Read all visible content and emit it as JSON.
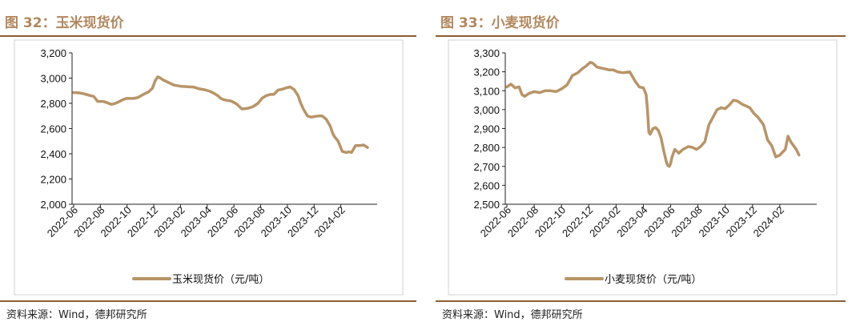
{
  "source": "资料来源：Wind，德邦研究所",
  "colors": {
    "line": "#b89468",
    "title": "#b2875e",
    "rule": "#8b5f33"
  },
  "chart_data": [
    {
      "type": "line",
      "figure_title": "图 32：玉米现货价",
      "xlabel": "",
      "ylabel": "",
      "xticks": [
        "2022-06",
        "2022-08",
        "2022-10",
        "2022-12",
        "2023-02",
        "2023-04",
        "2023-06",
        "2023-08",
        "2023-10",
        "2023-12",
        "2024-02"
      ],
      "yticks": [
        "2,000",
        "2,200",
        "2,400",
        "2,600",
        "2,800",
        "3,000",
        "3,200"
      ],
      "ylim": [
        2000,
        3200
      ],
      "x_range": [
        0,
        22
      ],
      "grid": false,
      "legend": "bottom-center",
      "series": [
        {
          "name": "玉米现货价（元/吨）",
          "x": [
            0,
            0.4,
            0.8,
            1.2,
            1.5,
            1.8,
            2.2,
            2.5,
            2.8,
            3.0,
            3.3,
            3.7,
            4.0,
            4.4,
            4.8,
            5.2,
            5.6,
            5.9,
            6.1,
            6.3,
            6.5,
            6.7,
            6.9,
            7.1,
            7.5,
            8.0,
            8.5,
            9.0,
            9.4,
            9.8,
            10.2,
            10.5,
            10.8,
            11.0,
            11.2,
            11.4,
            11.8,
            12.2,
            12.6,
            13.0,
            13.4,
            13.8,
            14.1,
            14.4,
            14.7,
            15.0,
            15.3,
            15.6,
            15.9,
            16.2,
            16.5,
            16.8,
            17.0,
            17.2,
            17.5,
            17.8,
            18.0,
            18.3,
            18.6,
            18.9,
            19.2,
            19.4,
            19.5,
            19.8,
            20.1,
            20.4,
            20.6,
            20.8,
            21.1,
            21.4,
            21.7,
            22.0
          ],
          "values": [
            2885,
            2883,
            2875,
            2862,
            2855,
            2815,
            2815,
            2805,
            2793,
            2795,
            2808,
            2830,
            2840,
            2838,
            2845,
            2870,
            2890,
            2920,
            2980,
            3010,
            3000,
            2985,
            2975,
            2965,
            2945,
            2935,
            2932,
            2928,
            2915,
            2908,
            2895,
            2880,
            2860,
            2840,
            2830,
            2825,
            2818,
            2795,
            2755,
            2760,
            2772,
            2800,
            2840,
            2860,
            2870,
            2872,
            2905,
            2912,
            2922,
            2930,
            2910,
            2860,
            2800,
            2755,
            2700,
            2690,
            2695,
            2700,
            2700,
            2675,
            2620,
            2560,
            2540,
            2500,
            2420,
            2410,
            2415,
            2410,
            2465,
            2465,
            2470,
            2450
          ]
        }
      ]
    },
    {
      "type": "line",
      "figure_title": "图 33：小麦现货价",
      "xlabel": "",
      "ylabel": "",
      "xticks": [
        "2022-06",
        "2022-08",
        "2022-10",
        "2022-12",
        "2023-02",
        "2023-04",
        "2023-06",
        "2023-08",
        "2023-10",
        "2023-12",
        "2024-02"
      ],
      "yticks": [
        "2,500",
        "2,600",
        "2,700",
        "2,800",
        "2,900",
        "3,000",
        "3,100",
        "3,200",
        "3,300"
      ],
      "ylim": [
        2500,
        3300
      ],
      "x_range": [
        0,
        22
      ],
      "grid": false,
      "legend": "bottom-center",
      "series": [
        {
          "name": "小麦现货价（元/吨）",
          "x": [
            0,
            0.3,
            0.6,
            0.9,
            1.1,
            1.3,
            1.6,
            2.0,
            2.4,
            2.8,
            3.2,
            3.6,
            4.0,
            4.4,
            4.8,
            5.2,
            5.5,
            5.8,
            6.1,
            6.3,
            6.6,
            6.9,
            7.2,
            7.5,
            7.8,
            8.1,
            8.5,
            9.0,
            9.4,
            9.7,
            10.0,
            10.2,
            10.3,
            10.4,
            10.5,
            10.7,
            10.9,
            11.1,
            11.3,
            11.5,
            11.7,
            11.8,
            11.9,
            12.0,
            12.1,
            12.3,
            12.6,
            12.9,
            13.3,
            13.6,
            13.9,
            14.2,
            14.5,
            14.8,
            15.1,
            15.4,
            15.7,
            16.0,
            16.3,
            16.6,
            16.9,
            17.2,
            17.5,
            17.8,
            18.1,
            18.4,
            18.8,
            19.1,
            19.4,
            19.7,
            20.0,
            20.2,
            20.4,
            20.6,
            20.8,
            21.0,
            21.1,
            21.2,
            21.4
          ],
          "values": [
            3120,
            3135,
            3115,
            3120,
            3080,
            3070,
            3085,
            3095,
            3090,
            3100,
            3100,
            3095,
            3110,
            3130,
            3180,
            3195,
            3215,
            3230,
            3250,
            3245,
            3225,
            3220,
            3215,
            3210,
            3210,
            3200,
            3195,
            3200,
            3150,
            3120,
            3115,
            3080,
            3000,
            2880,
            2870,
            2900,
            2905,
            2890,
            2850,
            2780,
            2720,
            2705,
            2700,
            2715,
            2750,
            2790,
            2770,
            2790,
            2805,
            2800,
            2790,
            2805,
            2830,
            2920,
            2960,
            3000,
            3010,
            3005,
            3025,
            3050,
            3045,
            3030,
            3020,
            3010,
            2980,
            2960,
            2920,
            2840,
            2810,
            2750,
            2760,
            2775,
            2790,
            2860,
            2830,
            2810,
            2800,
            2790,
            2760
          ]
        }
      ]
    }
  ]
}
